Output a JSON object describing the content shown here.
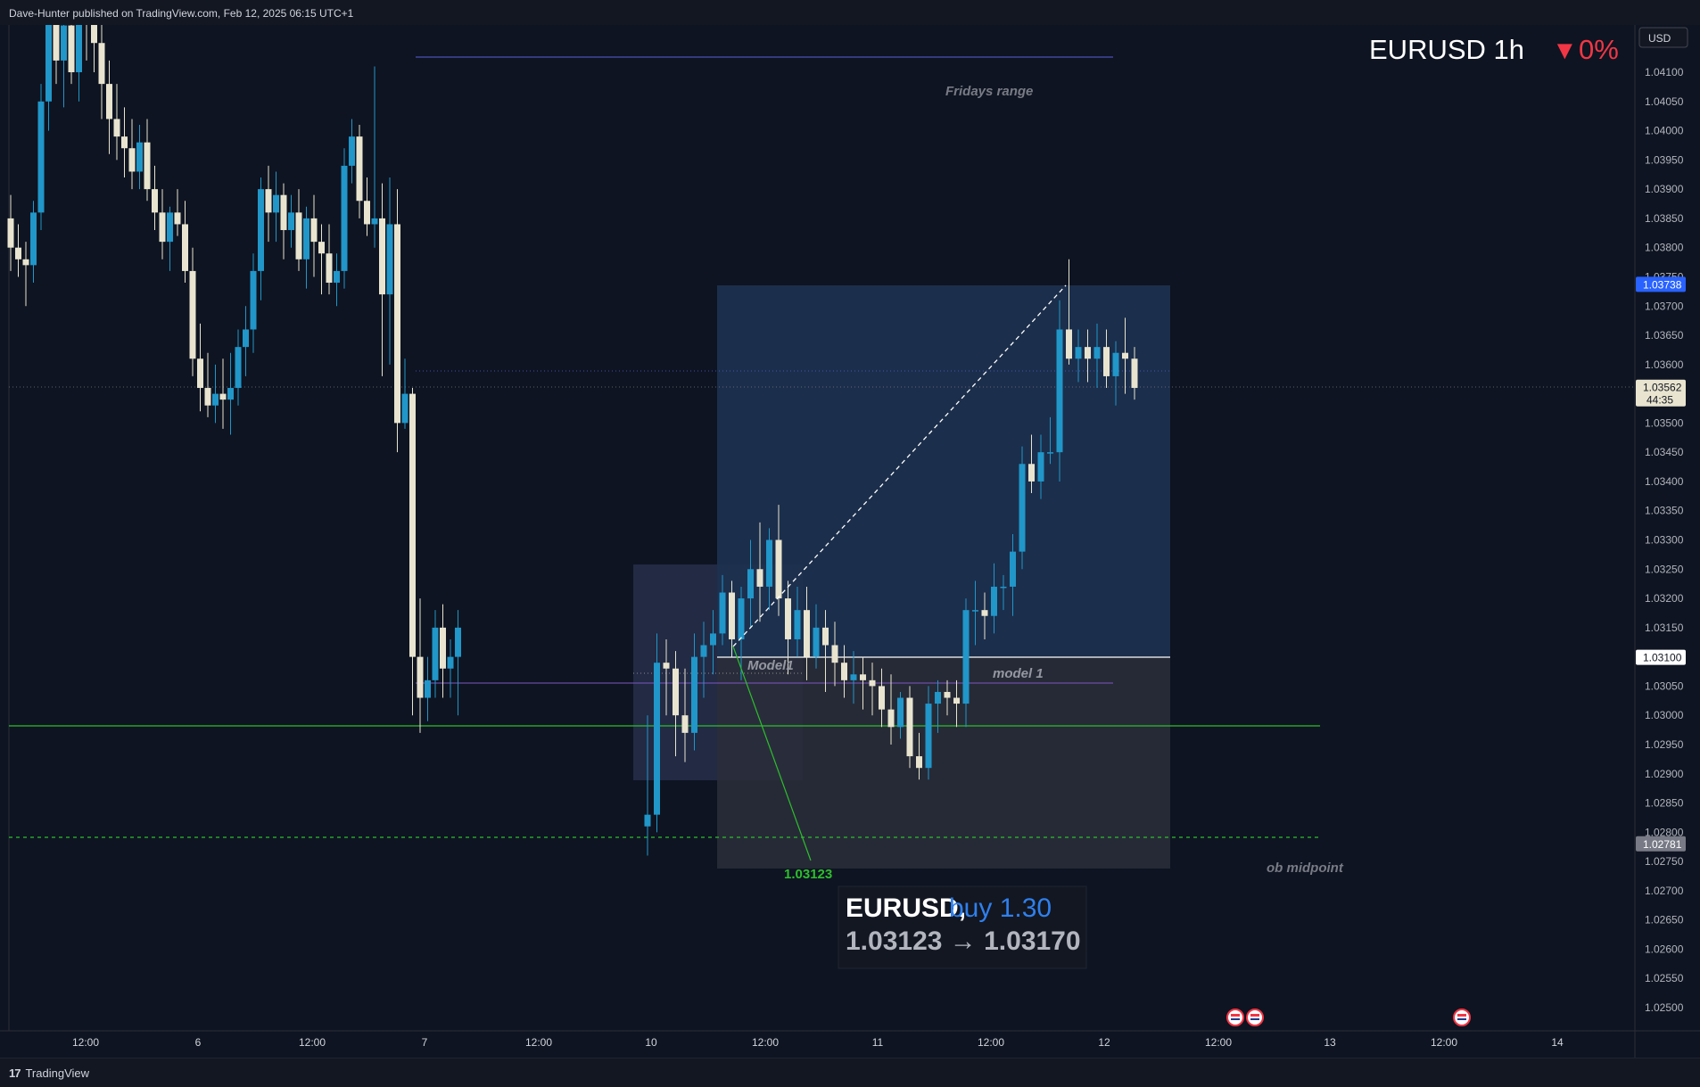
{
  "header": {
    "publisher": "Dave-Hunter published on TradingView.com, Feb 12, 2025 06:15 UTC+1"
  },
  "footer": {
    "brand_logo": "17",
    "brand": "TradingView"
  },
  "chart_data": {
    "type": "candlestick",
    "title": "EURUSD 1h",
    "change": "0%",
    "change_arrow": "▼",
    "currency": "USD",
    "ylim": [
      1.0245,
      1.0425
    ],
    "y_ticks": [
      "1.04100",
      "1.04050",
      "1.04000",
      "1.03950",
      "1.03900",
      "1.03850",
      "1.03800",
      "1.03750",
      "1.03700",
      "1.03650",
      "1.03600",
      "1.03550",
      "1.03500",
      "1.03450",
      "1.03400",
      "1.03350",
      "1.03300",
      "1.03250",
      "1.03200",
      "1.03150",
      "1.03100",
      "1.03050",
      "1.03000",
      "1.02950",
      "1.02900",
      "1.02850",
      "1.02800",
      "1.02750",
      "1.02700",
      "1.02650",
      "1.02600",
      "1.02550",
      "1.02500"
    ],
    "x_ticks": [
      "12:00",
      "6",
      "12:00",
      "7",
      "12:00",
      "10",
      "12:00",
      "11",
      "12:00",
      "12",
      "12:00",
      "13",
      "12:00",
      "14"
    ],
    "price_badges": [
      {
        "label": "1.03738",
        "value": 1.03738,
        "color": "#2962ff",
        "text_color": "#ffffff"
      },
      {
        "label": "1.03562",
        "sub": "44:35",
        "value": 1.03562,
        "color": "#e8e4cf",
        "text_color": "#131722"
      },
      {
        "label": "1.03100",
        "value": 1.031,
        "color": "#ffffff",
        "text_color": "#131722"
      },
      {
        "label": "1.02781",
        "value": 1.02781,
        "color": "#787b86",
        "text_color": "#ffffff"
      }
    ],
    "annotations": {
      "fridays_range": "Fridays range",
      "model1_left": "Model1",
      "model1_right": "model 1",
      "ob_midpoint": "ob midpoint",
      "entry_label": "1.03123"
    },
    "trade_box": {
      "symbol": "EURUSD,",
      "side": "buy 1.30",
      "prices": "1.03123 → 1.03170"
    },
    "up_color": "#2196c9",
    "down_color": "#e8e4cf",
    "candles": [
      [
        1.0385,
        1.0389,
        1.0376,
        1.038
      ],
      [
        1.038,
        1.0384,
        1.0375,
        1.0378
      ],
      [
        1.0378,
        1.0381,
        1.037,
        1.0377
      ],
      [
        1.0377,
        1.0388,
        1.0374,
        1.0386
      ],
      [
        1.0386,
        1.0408,
        1.0383,
        1.0405
      ],
      [
        1.0405,
        1.043,
        1.04,
        1.042
      ],
      [
        1.042,
        1.043,
        1.0408,
        1.0412
      ],
      [
        1.0412,
        1.0425,
        1.0404,
        1.0418
      ],
      [
        1.0418,
        1.0426,
        1.0408,
        1.041
      ],
      [
        1.041,
        1.043,
        1.0405,
        1.0425
      ],
      [
        1.0425,
        1.043,
        1.0412,
        1.0422
      ],
      [
        1.0422,
        1.0428,
        1.041,
        1.0415
      ],
      [
        1.0415,
        1.0422,
        1.0402,
        1.0408
      ],
      [
        1.0408,
        1.0412,
        1.0396,
        1.0402
      ],
      [
        1.0402,
        1.0408,
        1.0395,
        1.0399
      ],
      [
        1.0399,
        1.0404,
        1.0392,
        1.0397
      ],
      [
        1.0397,
        1.0402,
        1.039,
        1.0393
      ],
      [
        1.0393,
        1.0401,
        1.039,
        1.0398
      ],
      [
        1.0398,
        1.0402,
        1.0388,
        1.039
      ],
      [
        1.039,
        1.0394,
        1.0383,
        1.0386
      ],
      [
        1.0386,
        1.039,
        1.0378,
        1.0381
      ],
      [
        1.0381,
        1.0387,
        1.0376,
        1.0386
      ],
      [
        1.0386,
        1.039,
        1.0382,
        1.0384
      ],
      [
        1.0384,
        1.0388,
        1.0374,
        1.0376
      ],
      [
        1.0376,
        1.038,
        1.0358,
        1.0361
      ],
      [
        1.0361,
        1.0367,
        1.0352,
        1.0356
      ],
      [
        1.0356,
        1.0362,
        1.0351,
        1.0353
      ],
      [
        1.0353,
        1.036,
        1.035,
        1.0355
      ],
      [
        1.0355,
        1.0361,
        1.0349,
        1.0354
      ],
      [
        1.0354,
        1.0362,
        1.0348,
        1.0356
      ],
      [
        1.0356,
        1.0366,
        1.0353,
        1.0363
      ],
      [
        1.0363,
        1.037,
        1.0358,
        1.0366
      ],
      [
        1.0366,
        1.0379,
        1.0362,
        1.0376
      ],
      [
        1.0376,
        1.0392,
        1.0371,
        1.039
      ],
      [
        1.039,
        1.0394,
        1.0381,
        1.0386
      ],
      [
        1.0386,
        1.0393,
        1.0381,
        1.0389
      ],
      [
        1.0389,
        1.0391,
        1.0378,
        1.0383
      ],
      [
        1.0383,
        1.0389,
        1.038,
        1.0386
      ],
      [
        1.0386,
        1.039,
        1.0376,
        1.0378
      ],
      [
        1.0378,
        1.0387,
        1.0373,
        1.0385
      ],
      [
        1.0385,
        1.0389,
        1.0375,
        1.0381
      ],
      [
        1.0381,
        1.0384,
        1.0372,
        1.0379
      ],
      [
        1.0379,
        1.0384,
        1.0372,
        1.0374
      ],
      [
        1.0374,
        1.0379,
        1.037,
        1.0376
      ],
      [
        1.0376,
        1.0397,
        1.0373,
        1.0394
      ],
      [
        1.0394,
        1.0402,
        1.0391,
        1.0399
      ],
      [
        1.0399,
        1.0401,
        1.0385,
        1.0388
      ],
      [
        1.0388,
        1.0392,
        1.0382,
        1.0384
      ],
      [
        1.0384,
        1.0411,
        1.038,
        1.0385
      ],
      [
        1.0385,
        1.0391,
        1.0358,
        1.0372
      ],
      [
        1.0372,
        1.0392,
        1.036,
        1.0384
      ],
      [
        1.0384,
        1.039,
        1.0345,
        1.035
      ],
      [
        1.035,
        1.0361,
        1.0349,
        1.0355
      ],
      [
        1.0355,
        1.0356,
        1.03,
        1.031
      ],
      [
        1.031,
        1.032,
        1.0297,
        1.0303
      ],
      [
        1.0303,
        1.031,
        1.0299,
        1.0306
      ],
      [
        1.0306,
        1.0318,
        1.0303,
        1.0315
      ],
      [
        1.0315,
        1.0319,
        1.0303,
        1.0308
      ],
      [
        1.0308,
        1.0313,
        1.0303,
        1.031
      ],
      [
        1.031,
        1.0318,
        1.03,
        1.0315
      ]
    ],
    "candles_right": [
      [
        1.0281,
        1.03,
        1.0276,
        1.0283
      ],
      [
        1.0283,
        1.0314,
        1.028,
        1.0309
      ],
      [
        1.0309,
        1.0313,
        1.03,
        1.0308
      ],
      [
        1.0308,
        1.0311,
        1.0293,
        1.03
      ],
      [
        1.03,
        1.0308,
        1.0292,
        1.0297
      ],
      [
        1.0297,
        1.0314,
        1.0294,
        1.031
      ],
      [
        1.031,
        1.0316,
        1.0303,
        1.0312
      ],
      [
        1.0312,
        1.0318,
        1.0307,
        1.0314
      ],
      [
        1.0314,
        1.0324,
        1.0312,
        1.0321
      ],
      [
        1.0321,
        1.0323,
        1.031,
        1.0313
      ],
      [
        1.0313,
        1.0322,
        1.0306,
        1.032
      ],
      [
        1.032,
        1.033,
        1.0315,
        1.0325
      ],
      [
        1.0325,
        1.0333,
        1.0316,
        1.0322
      ],
      [
        1.0322,
        1.0332,
        1.0318,
        1.033
      ],
      [
        1.033,
        1.0336,
        1.0317,
        1.032
      ],
      [
        1.032,
        1.0323,
        1.0307,
        1.0313
      ],
      [
        1.0313,
        1.0322,
        1.031,
        1.0318
      ],
      [
        1.0318,
        1.0322,
        1.0306,
        1.031
      ],
      [
        1.031,
        1.0319,
        1.0308,
        1.0315
      ],
      [
        1.0315,
        1.0318,
        1.0304,
        1.0312
      ],
      [
        1.0312,
        1.0316,
        1.0305,
        1.0309
      ],
      [
        1.0309,
        1.0312,
        1.0303,
        1.0306
      ],
      [
        1.0306,
        1.0311,
        1.0302,
        1.0307
      ],
      [
        1.0307,
        1.031,
        1.0301,
        1.0306
      ],
      [
        1.0306,
        1.0309,
        1.03,
        1.0305
      ],
      [
        1.0305,
        1.0308,
        1.0298,
        1.0301
      ],
      [
        1.0301,
        1.0307,
        1.0295,
        1.0298
      ],
      [
        1.0298,
        1.0304,
        1.0296,
        1.0303
      ],
      [
        1.0303,
        1.0305,
        1.0291,
        1.0293
      ],
      [
        1.0293,
        1.0297,
        1.0289,
        1.0291
      ],
      [
        1.0291,
        1.0305,
        1.0289,
        1.0302
      ],
      [
        1.0302,
        1.0306,
        1.0297,
        1.0304
      ],
      [
        1.0304,
        1.0306,
        1.03,
        1.0303
      ],
      [
        1.0303,
        1.0306,
        1.0298,
        1.0302
      ],
      [
        1.0302,
        1.032,
        1.0298,
        1.0318
      ],
      [
        1.0318,
        1.0323,
        1.0312,
        1.0318
      ],
      [
        1.0318,
        1.0321,
        1.0313,
        1.0317
      ],
      [
        1.0317,
        1.0326,
        1.0314,
        1.0322
      ],
      [
        1.0322,
        1.0324,
        1.0318,
        1.0322
      ],
      [
        1.0322,
        1.0331,
        1.0317,
        1.0328
      ],
      [
        1.0328,
        1.0346,
        1.0325,
        1.0343
      ],
      [
        1.0343,
        1.0348,
        1.0338,
        1.034
      ],
      [
        1.034,
        1.0348,
        1.0337,
        1.0345
      ],
      [
        1.0345,
        1.0351,
        1.0343,
        1.0345
      ],
      [
        1.0345,
        1.0371,
        1.034,
        1.0366
      ],
      [
        1.0366,
        1.0378,
        1.036,
        1.0361
      ],
      [
        1.0361,
        1.0366,
        1.0357,
        1.0363
      ],
      [
        1.0363,
        1.0366,
        1.0357,
        1.0361
      ],
      [
        1.0361,
        1.0367,
        1.0356,
        1.0363
      ],
      [
        1.0363,
        1.0366,
        1.0356,
        1.0358
      ],
      [
        1.0358,
        1.0364,
        1.0353,
        1.0362
      ],
      [
        1.0362,
        1.0368,
        1.0355,
        1.0361
      ],
      [
        1.0361,
        1.0363,
        1.0354,
        1.0356
      ]
    ]
  }
}
